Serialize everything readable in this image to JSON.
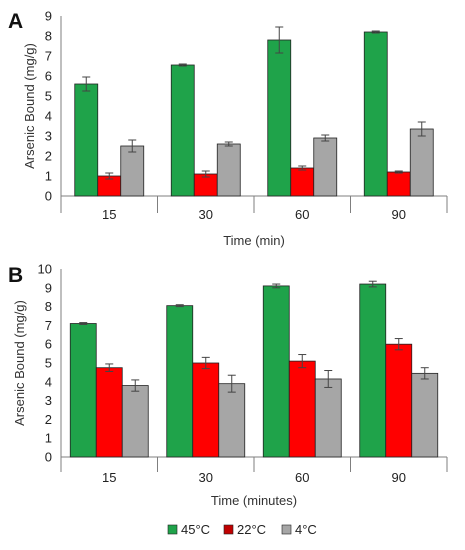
{
  "chart_data": [
    {
      "type": "bar",
      "panel_label": "A",
      "xlabel": "Time (min)",
      "ylabel": "Arsenic Bound (mg/g)",
      "ylim": [
        0,
        9
      ],
      "yticks": [
        "0",
        "1",
        "2",
        "3",
        "4",
        "5",
        "6",
        "7",
        "8",
        "9"
      ],
      "categories": [
        "15",
        "30",
        "60",
        "90"
      ],
      "series": [
        {
          "name": "45°C",
          "color": "#1fa34a",
          "values": [
            5.6,
            6.55,
            7.8,
            8.2
          ],
          "errors": [
            0.35,
            0.05,
            0.65,
            0.05
          ]
        },
        {
          "name": "22°C",
          "color": "#ff0000",
          "values": [
            1.0,
            1.1,
            1.4,
            1.2
          ],
          "errors": [
            0.15,
            0.15,
            0.1,
            0.05
          ]
        },
        {
          "name": "4°C",
          "color": "#a6a6a6",
          "values": [
            2.5,
            2.6,
            2.9,
            3.35
          ],
          "errors": [
            0.3,
            0.1,
            0.15,
            0.35
          ]
        }
      ]
    },
    {
      "type": "bar",
      "panel_label": "B",
      "xlabel": "Time (minutes)",
      "ylabel": "Arsenic Bound (mg/g)",
      "ylim": [
        0,
        10
      ],
      "yticks": [
        "0",
        "1",
        "2",
        "3",
        "4",
        "5",
        "6",
        "7",
        "8",
        "9",
        "10"
      ],
      "categories": [
        "15",
        "30",
        "60",
        "90"
      ],
      "series": [
        {
          "name": "45°C",
          "color": "#1fa34a",
          "values": [
            7.1,
            8.05,
            9.1,
            9.2
          ],
          "errors": [
            0.05,
            0.05,
            0.1,
            0.15
          ]
        },
        {
          "name": "22°C",
          "color": "#ff0000",
          "values": [
            4.75,
            5.0,
            5.1,
            6.0
          ],
          "errors": [
            0.2,
            0.3,
            0.35,
            0.3
          ]
        },
        {
          "name": "4°C",
          "color": "#a6a6a6",
          "values": [
            3.8,
            3.9,
            4.15,
            4.45
          ],
          "errors": [
            0.3,
            0.45,
            0.45,
            0.3
          ]
        }
      ]
    }
  ],
  "legend": {
    "items": [
      {
        "name": "45°C",
        "color": "#1fa34a"
      },
      {
        "name": "22°C",
        "color": "#c00000"
      },
      {
        "name": "4°C",
        "color": "#a6a6a6"
      }
    ]
  }
}
